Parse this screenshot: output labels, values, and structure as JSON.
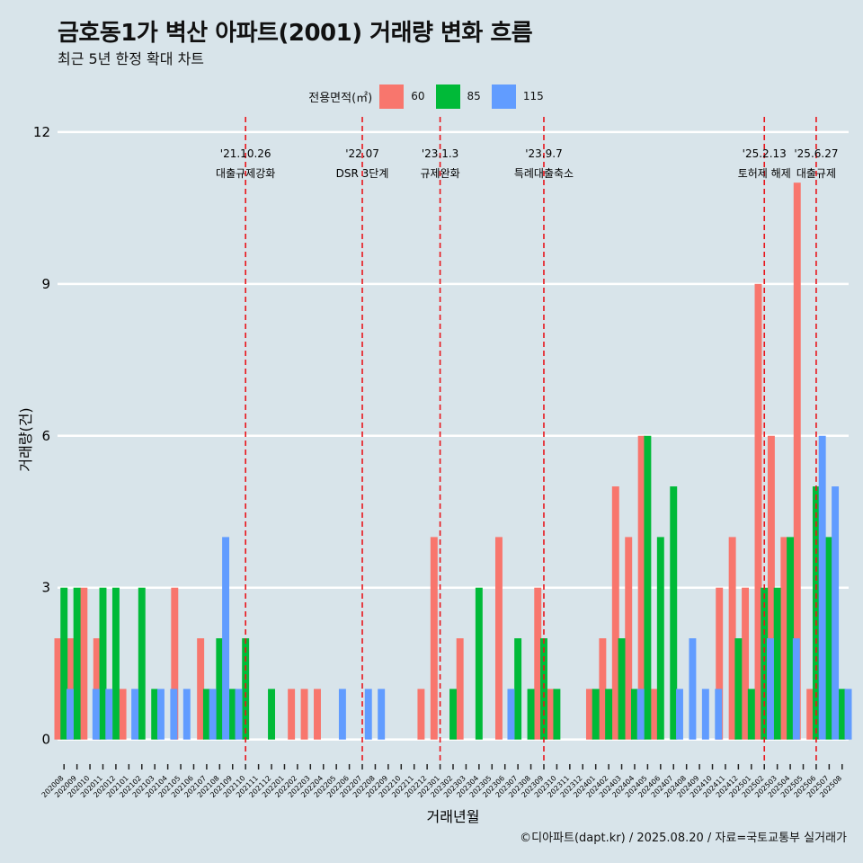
{
  "header": {
    "title": "금호동1가 벽산 아파트(2001) 거래량 변화 흐름",
    "subtitle": "최근 5년 한정 확대 차트"
  },
  "legend": {
    "title": "전용면적(㎡)",
    "items": [
      {
        "label": "60",
        "color": "#F8766D"
      },
      {
        "label": "85",
        "color": "#00BA38"
      },
      {
        "label": "115",
        "color": "#619CFF"
      }
    ]
  },
  "caption": "©디아파트(dapt.kr) / 2025.08.20 / 자료=국토교통부 실거래가",
  "chart_data": {
    "type": "bar",
    "xlabel": "거래년월",
    "ylabel": "거래량(건)",
    "ylim": [
      -0.45,
      12.3
    ],
    "yticks": [
      0,
      3,
      6,
      9,
      12
    ],
    "grid": true,
    "legend_position": "top",
    "categories": [
      "202008",
      "202009",
      "202010",
      "202011",
      "202012",
      "202101",
      "202102",
      "202103",
      "202104",
      "202105",
      "202106",
      "202107",
      "202108",
      "202109",
      "202110",
      "202111",
      "202112",
      "202201",
      "202202",
      "202203",
      "202204",
      "202205",
      "202206",
      "202207",
      "202208",
      "202209",
      "202210",
      "202211",
      "202212",
      "202301",
      "202302",
      "202303",
      "202304",
      "202305",
      "202306",
      "202307",
      "202308",
      "202309",
      "202310",
      "202311",
      "202312",
      "202401",
      "202402",
      "202403",
      "202404",
      "202405",
      "202406",
      "202407",
      "202408",
      "202409",
      "202410",
      "202411",
      "202412",
      "202501",
      "202502",
      "202503",
      "202504",
      "202505",
      "202506",
      "202507",
      "202508"
    ],
    "series": [
      {
        "name": "60",
        "color": "#F8766D",
        "values": [
          2,
          2,
          3,
          2,
          null,
          1,
          null,
          null,
          null,
          3,
          null,
          2,
          null,
          null,
          null,
          null,
          null,
          null,
          1,
          1,
          1,
          null,
          null,
          null,
          null,
          null,
          null,
          null,
          1,
          4,
          null,
          2,
          null,
          null,
          4,
          null,
          null,
          3,
          1,
          null,
          null,
          1,
          2,
          5,
          4,
          6,
          1,
          null,
          null,
          null,
          null,
          3,
          4,
          3,
          9,
          6,
          4,
          11,
          1,
          null,
          null
        ]
      },
      {
        "name": "85",
        "color": "#00BA38",
        "values": [
          3,
          3,
          null,
          3,
          3,
          null,
          3,
          1,
          null,
          null,
          null,
          1,
          2,
          1,
          2,
          null,
          1,
          null,
          null,
          null,
          null,
          null,
          null,
          null,
          null,
          null,
          null,
          null,
          null,
          null,
          1,
          null,
          3,
          null,
          null,
          2,
          1,
          2,
          1,
          null,
          null,
          1,
          1,
          2,
          1,
          6,
          4,
          5,
          null,
          null,
          null,
          null,
          2,
          1,
          3,
          3,
          4,
          null,
          5,
          4,
          1
        ]
      },
      {
        "name": "115",
        "color": "#619CFF",
        "values": [
          1,
          null,
          1,
          1,
          null,
          1,
          null,
          1,
          1,
          1,
          null,
          1,
          4,
          1,
          null,
          null,
          null,
          null,
          null,
          null,
          null,
          1,
          null,
          1,
          1,
          null,
          null,
          null,
          null,
          null,
          null,
          null,
          null,
          null,
          1,
          null,
          null,
          null,
          null,
          null,
          null,
          null,
          null,
          null,
          1,
          null,
          null,
          1,
          2,
          1,
          1,
          null,
          null,
          null,
          2,
          null,
          2,
          null,
          6,
          5,
          1
        ]
      }
    ],
    "events": [
      {
        "date": "'21.10.26",
        "label": "대출규제강화",
        "x": 14
      },
      {
        "date": "'22.07",
        "label": "DSR 3단계",
        "x": 23
      },
      {
        "date": "'23.1.3",
        "label": "규제완화",
        "x": 29
      },
      {
        "date": "'23.9.7",
        "label": "특례대출축소",
        "x": 37
      },
      {
        "date": "'25.2.13",
        "label": "토허제 해제",
        "x": 54
      },
      {
        "date": "'25.6.27",
        "label": "대출규제",
        "x": 58
      }
    ]
  }
}
